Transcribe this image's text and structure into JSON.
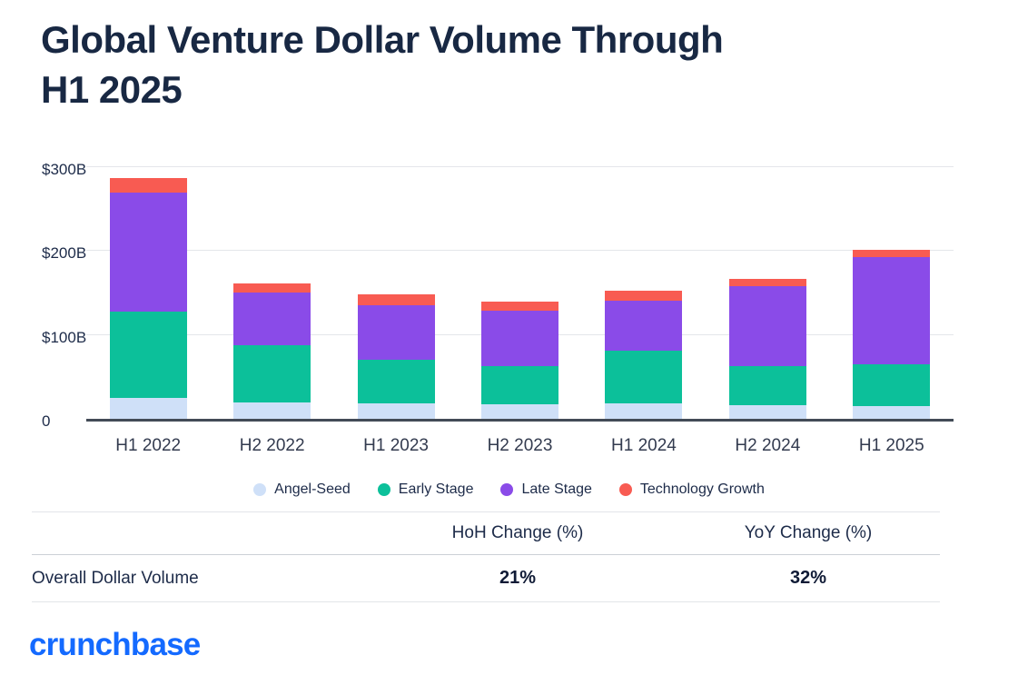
{
  "title": {
    "line1": "Global Venture Dollar Volume Through",
    "line2": "H1 2025"
  },
  "chart_data": {
    "type": "bar",
    "stacked": true,
    "title": "Global Venture Dollar Volume Through H1 2025",
    "xlabel": "",
    "ylabel": "",
    "unit": "billions USD",
    "ylim": [
      0,
      300
    ],
    "grid": true,
    "legend_position": "bottom",
    "categories": [
      "H1 2022",
      "H2 2022",
      "H1 2023",
      "H2 2023",
      "H1 2024",
      "H2 2024",
      "H1 2025"
    ],
    "yticks": [
      {
        "value": 0,
        "label": "0"
      },
      {
        "value": 100,
        "label": "$100B"
      },
      {
        "value": 200,
        "label": "$200B"
      },
      {
        "value": 300,
        "label": "$300B"
      }
    ],
    "series": [
      {
        "name": "Angel-Seed",
        "color": "#cfe0f8",
        "values": [
          25,
          20,
          18,
          17,
          18,
          16,
          15
        ]
      },
      {
        "name": "Early Stage",
        "color": "#0cc09a",
        "values": [
          103,
          68,
          52,
          46,
          63,
          47,
          50
        ]
      },
      {
        "name": "Late Stage",
        "color": "#8a4be8",
        "values": [
          142,
          63,
          65,
          66,
          60,
          95,
          128
        ]
      },
      {
        "name": "Technology Growth",
        "color": "#f85b52",
        "values": [
          17,
          10,
          13,
          11,
          12,
          9,
          9
        ]
      }
    ],
    "totals": [
      287,
      161,
      148,
      140,
      153,
      167,
      202
    ]
  },
  "table": {
    "header": {
      "change_hoh": "HoH Change (%)",
      "change_yoy": "YoY Change (%)"
    },
    "row": {
      "label": "Overall Dollar Volume",
      "hoh": "21%",
      "yoy": "32%"
    }
  },
  "footer": {
    "logo_text": "crunchbase"
  }
}
